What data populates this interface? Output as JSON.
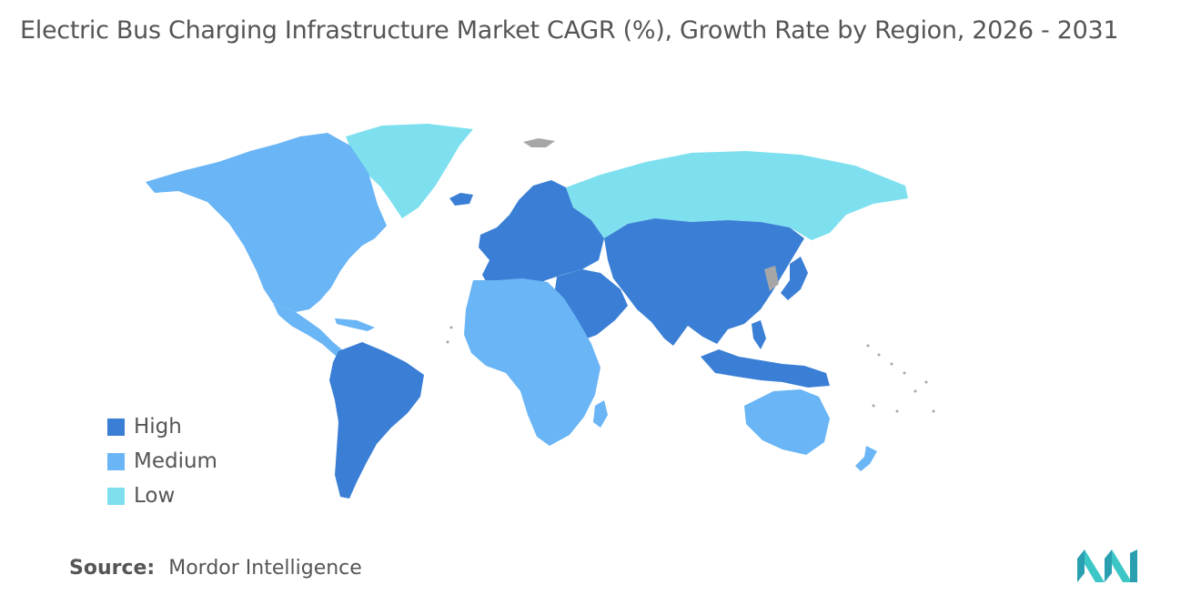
{
  "title": "Electric Bus Charging Infrastructure Market CAGR (%), Growth Rate by Region, 2026 - 2031",
  "legend": [
    {
      "label": "High",
      "color": "#3a7fd5"
    },
    {
      "label": "Medium",
      "color": "#6ab5f5"
    },
    {
      "label": "Low",
      "color": "#7ee0ef"
    }
  ],
  "source": {
    "key": "Source:",
    "value": "Mordor Intelligence"
  },
  "colors": {
    "high": "#3a7fd5",
    "medium": "#6ab5f5",
    "low": "#7ee0ef",
    "no_data": "#a6a6a6"
  },
  "regions": [
    {
      "name": "North America",
      "level": "Medium"
    },
    {
      "name": "Greenland",
      "level": "Low"
    },
    {
      "name": "Central America",
      "level": "Medium"
    },
    {
      "name": "South America",
      "level": "High"
    },
    {
      "name": "Europe",
      "level": "High"
    },
    {
      "name": "Russia",
      "level": "Low"
    },
    {
      "name": "Africa",
      "level": "Medium"
    },
    {
      "name": "Middle East",
      "level": "High"
    },
    {
      "name": "Asia",
      "level": "High"
    },
    {
      "name": "Australia and New Zealand",
      "level": "Medium"
    }
  ]
}
